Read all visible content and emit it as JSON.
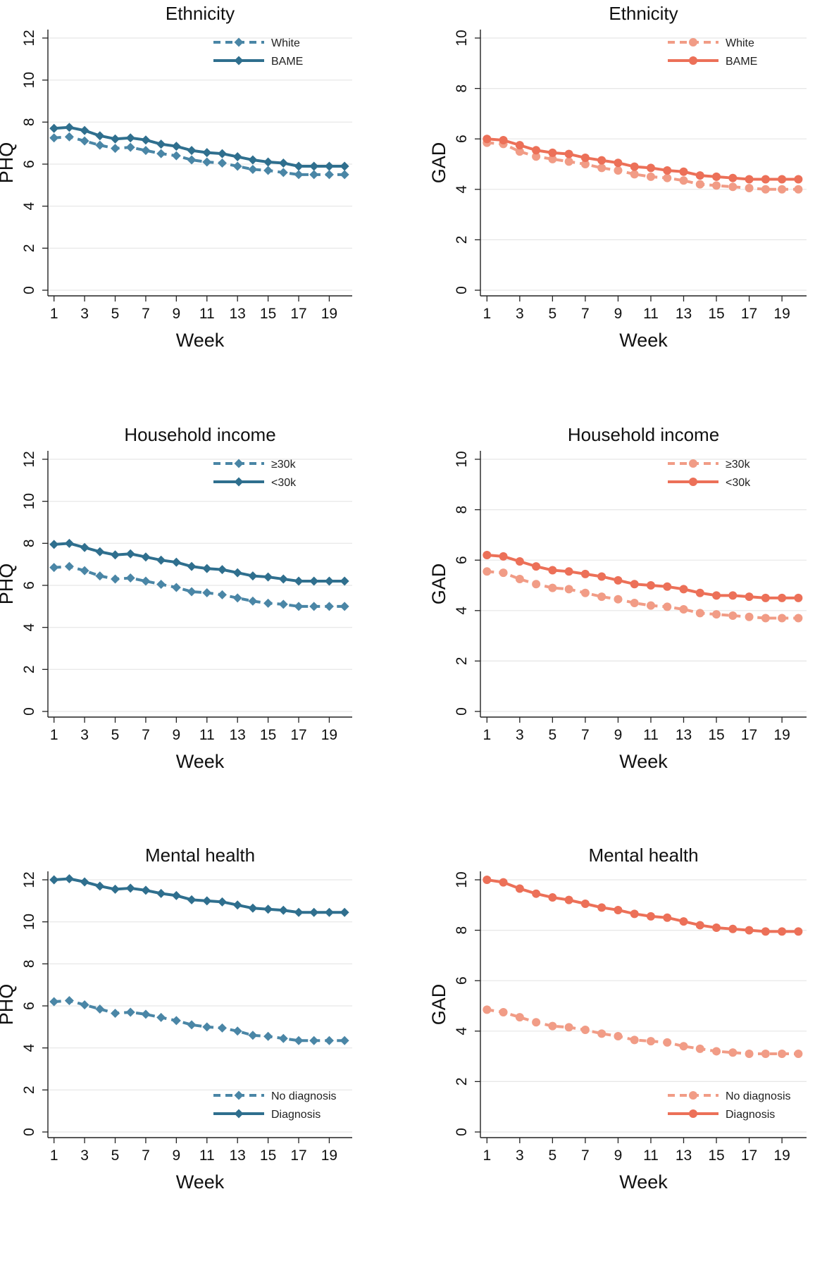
{
  "colors": {
    "blue": "#4a86a6",
    "blue_dark": "#2f6f8e",
    "red_light": "#f19c86",
    "red_dark": "#ec7058"
  },
  "chart_data": [
    {
      "type": "line",
      "title": "Ethnicity",
      "xlabel": "Week",
      "ylabel": "PHQ",
      "x": [
        1,
        2,
        3,
        4,
        5,
        6,
        7,
        8,
        9,
        10,
        11,
        12,
        13,
        14,
        15,
        16,
        17,
        18,
        19,
        20
      ],
      "xticks": [
        "1",
        "3",
        "5",
        "7",
        "9",
        "11",
        "13",
        "15",
        "17",
        "19"
      ],
      "yticks": [
        "0",
        "2",
        "4",
        "6",
        "8",
        "10",
        "12"
      ],
      "ylim": [
        0,
        12
      ],
      "grid": "horizontal",
      "marker": "diamond",
      "legend": "top-right",
      "series": [
        {
          "name": "White",
          "style": "dashed",
          "color": "#4a86a6",
          "values": [
            7.25,
            7.3,
            7.1,
            6.9,
            6.75,
            6.8,
            6.65,
            6.5,
            6.4,
            6.2,
            6.1,
            6.05,
            5.9,
            5.75,
            5.7,
            5.6,
            5.5,
            5.5,
            5.5,
            5.5
          ]
        },
        {
          "name": "BAME",
          "style": "solid",
          "color": "#2f6f8e",
          "values": [
            7.7,
            7.75,
            7.6,
            7.35,
            7.2,
            7.25,
            7.15,
            6.95,
            6.85,
            6.65,
            6.55,
            6.5,
            6.35,
            6.2,
            6.1,
            6.05,
            5.9,
            5.9,
            5.9,
            5.9
          ]
        }
      ]
    },
    {
      "type": "line",
      "title": "Ethnicity",
      "xlabel": "Week",
      "ylabel": "GAD",
      "x": [
        1,
        2,
        3,
        4,
        5,
        6,
        7,
        8,
        9,
        10,
        11,
        12,
        13,
        14,
        15,
        16,
        17,
        18,
        19,
        20
      ],
      "xticks": [
        "1",
        "3",
        "5",
        "7",
        "9",
        "11",
        "13",
        "15",
        "17",
        "19"
      ],
      "yticks": [
        "0",
        "2",
        "4",
        "6",
        "8",
        "10"
      ],
      "ylim": [
        0,
        10
      ],
      "grid": "horizontal",
      "marker": "circle",
      "legend": "top-right",
      "series": [
        {
          "name": "White",
          "style": "dashed",
          "color": "#f19c86",
          "values": [
            5.85,
            5.8,
            5.5,
            5.3,
            5.2,
            5.1,
            5.0,
            4.85,
            4.75,
            4.6,
            4.5,
            4.45,
            4.35,
            4.2,
            4.15,
            4.1,
            4.05,
            4.0,
            4.0,
            4.0
          ]
        },
        {
          "name": "BAME",
          "style": "solid",
          "color": "#ec7058",
          "values": [
            6.0,
            5.95,
            5.75,
            5.55,
            5.45,
            5.4,
            5.25,
            5.15,
            5.05,
            4.9,
            4.85,
            4.75,
            4.7,
            4.55,
            4.5,
            4.45,
            4.4,
            4.4,
            4.4,
            4.4
          ]
        }
      ]
    },
    {
      "type": "line",
      "title": "Household income",
      "xlabel": "Week",
      "ylabel": "PHQ",
      "x": [
        1,
        2,
        3,
        4,
        5,
        6,
        7,
        8,
        9,
        10,
        11,
        12,
        13,
        14,
        15,
        16,
        17,
        18,
        19,
        20
      ],
      "xticks": [
        "1",
        "3",
        "5",
        "7",
        "9",
        "11",
        "13",
        "15",
        "17",
        "19"
      ],
      "yticks": [
        "0",
        "2",
        "4",
        "6",
        "8",
        "10",
        "12"
      ],
      "ylim": [
        0,
        12
      ],
      "grid": "horizontal",
      "marker": "diamond",
      "legend": "top-right",
      "series": [
        {
          "name": "≥30k",
          "style": "dashed",
          "color": "#4a86a6",
          "values": [
            6.85,
            6.9,
            6.7,
            6.45,
            6.3,
            6.35,
            6.2,
            6.05,
            5.9,
            5.7,
            5.65,
            5.55,
            5.4,
            5.25,
            5.15,
            5.1,
            5.0,
            5.0,
            5.0,
            5.0
          ]
        },
        {
          "name": "<30k",
          "style": "solid",
          "color": "#2f6f8e",
          "values": [
            7.95,
            8.0,
            7.8,
            7.6,
            7.45,
            7.5,
            7.35,
            7.2,
            7.1,
            6.9,
            6.8,
            6.75,
            6.6,
            6.45,
            6.4,
            6.3,
            6.2,
            6.2,
            6.2,
            6.2
          ]
        }
      ]
    },
    {
      "type": "line",
      "title": "Household income",
      "xlabel": "Week",
      "ylabel": "GAD",
      "x": [
        1,
        2,
        3,
        4,
        5,
        6,
        7,
        8,
        9,
        10,
        11,
        12,
        13,
        14,
        15,
        16,
        17,
        18,
        19,
        20
      ],
      "xticks": [
        "1",
        "3",
        "5",
        "7",
        "9",
        "11",
        "13",
        "15",
        "17",
        "19"
      ],
      "yticks": [
        "0",
        "2",
        "4",
        "6",
        "8",
        "10"
      ],
      "ylim": [
        0,
        10
      ],
      "grid": "horizontal",
      "marker": "circle",
      "legend": "top-right",
      "series": [
        {
          "name": "≥30k",
          "style": "dashed",
          "color": "#f19c86",
          "values": [
            5.55,
            5.5,
            5.25,
            5.05,
            4.9,
            4.85,
            4.7,
            4.55,
            4.45,
            4.3,
            4.2,
            4.15,
            4.05,
            3.9,
            3.85,
            3.8,
            3.75,
            3.7,
            3.7,
            3.7
          ]
        },
        {
          "name": "<30k",
          "style": "solid",
          "color": "#ec7058",
          "values": [
            6.2,
            6.15,
            5.95,
            5.75,
            5.6,
            5.55,
            5.45,
            5.35,
            5.2,
            5.05,
            5.0,
            4.95,
            4.85,
            4.7,
            4.6,
            4.6,
            4.55,
            4.5,
            4.5,
            4.5
          ]
        }
      ]
    },
    {
      "type": "line",
      "title": "Mental health",
      "xlabel": "Week",
      "ylabel": "PHQ",
      "x": [
        1,
        2,
        3,
        4,
        5,
        6,
        7,
        8,
        9,
        10,
        11,
        12,
        13,
        14,
        15,
        16,
        17,
        18,
        19,
        20
      ],
      "xticks": [
        "1",
        "3",
        "5",
        "7",
        "9",
        "11",
        "13",
        "15",
        "17",
        "19"
      ],
      "yticks": [
        "0",
        "2",
        "4",
        "6",
        "8",
        "10",
        "12"
      ],
      "ylim": [
        0,
        12
      ],
      "grid": "horizontal",
      "marker": "diamond",
      "legend": "bottom-right",
      "series": [
        {
          "name": "No diagnosis",
          "style": "dashed",
          "color": "#4a86a6",
          "values": [
            6.2,
            6.25,
            6.05,
            5.85,
            5.65,
            5.7,
            5.6,
            5.45,
            5.3,
            5.1,
            5.0,
            4.95,
            4.8,
            4.6,
            4.55,
            4.45,
            4.35,
            4.35,
            4.35,
            4.35
          ]
        },
        {
          "name": "Diagnosis",
          "style": "solid",
          "color": "#2f6f8e",
          "values": [
            12.0,
            12.05,
            11.9,
            11.7,
            11.55,
            11.6,
            11.5,
            11.35,
            11.25,
            11.05,
            11.0,
            10.95,
            10.8,
            10.65,
            10.6,
            10.55,
            10.45,
            10.45,
            10.45,
            10.45
          ]
        }
      ]
    },
    {
      "type": "line",
      "title": "Mental health",
      "xlabel": "Week",
      "ylabel": "GAD",
      "x": [
        1,
        2,
        3,
        4,
        5,
        6,
        7,
        8,
        9,
        10,
        11,
        12,
        13,
        14,
        15,
        16,
        17,
        18,
        19,
        20
      ],
      "xticks": [
        "1",
        "3",
        "5",
        "7",
        "9",
        "11",
        "13",
        "15",
        "17",
        "19"
      ],
      "yticks": [
        "0",
        "2",
        "4",
        "6",
        "8",
        "10"
      ],
      "ylim": [
        0,
        10
      ],
      "grid": "horizontal",
      "marker": "circle",
      "legend": "bottom-right",
      "series": [
        {
          "name": "No diagnosis",
          "style": "dashed",
          "color": "#f19c86",
          "values": [
            4.85,
            4.75,
            4.55,
            4.35,
            4.2,
            4.15,
            4.05,
            3.9,
            3.8,
            3.65,
            3.6,
            3.55,
            3.4,
            3.3,
            3.2,
            3.15,
            3.1,
            3.1,
            3.1,
            3.1
          ]
        },
        {
          "name": "Diagnosis",
          "style": "solid",
          "color": "#ec7058",
          "values": [
            10.0,
            9.9,
            9.65,
            9.45,
            9.3,
            9.2,
            9.05,
            8.9,
            8.8,
            8.65,
            8.55,
            8.5,
            8.35,
            8.2,
            8.1,
            8.05,
            8.0,
            7.95,
            7.95,
            7.95
          ]
        }
      ]
    }
  ]
}
